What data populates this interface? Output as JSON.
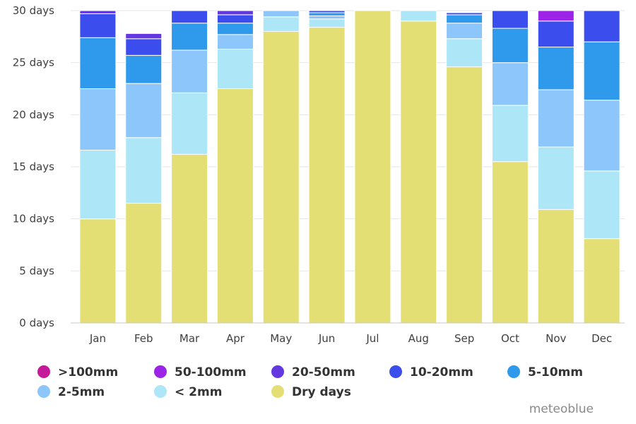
{
  "chart_data": {
    "type": "bar",
    "stacked": true,
    "categories": [
      "Jan",
      "Feb",
      "Mar",
      "Apr",
      "May",
      "Jun",
      "Jul",
      "Aug",
      "Sep",
      "Oct",
      "Nov",
      "Dec"
    ],
    "ylim": [
      0,
      30
    ],
    "yticks": [
      0,
      5,
      10,
      15,
      20,
      25,
      30
    ],
    "ytick_labels": [
      "0 days",
      "5 days",
      "10 days",
      "15 days",
      "20 days",
      "25 days",
      "30 days"
    ],
    "grid": true,
    "legend_placement": "bottom",
    "credit": "meteoblue",
    "series": [
      {
        "name": "Dry days",
        "color": "#e3df75",
        "values": [
          10.0,
          11.5,
          16.2,
          22.5,
          28.0,
          28.4,
          30.0,
          29.0,
          24.6,
          15.5,
          10.9,
          8.1
        ]
      },
      {
        "name": "< 2mm",
        "color": "#ade6f7",
        "values": [
          6.6,
          6.3,
          5.9,
          3.8,
          1.4,
          0.8,
          0.0,
          1.0,
          2.7,
          5.4,
          6.0,
          6.5
        ]
      },
      {
        "name": "2-5mm",
        "color": "#8cc6fa",
        "values": [
          5.9,
          5.2,
          4.1,
          1.4,
          0.6,
          0.3,
          0.0,
          0.0,
          1.5,
          4.1,
          5.5,
          6.8
        ]
      },
      {
        "name": "5-10mm",
        "color": "#2f9aec",
        "values": [
          4.9,
          2.7,
          2.6,
          1.1,
          0.0,
          0.3,
          0.0,
          0.0,
          0.8,
          3.3,
          4.1,
          5.6
        ]
      },
      {
        "name": "10-20mm",
        "color": "#3c4ded",
        "values": [
          2.3,
          1.6,
          1.2,
          0.8,
          0.0,
          0.2,
          0.0,
          0.0,
          0.2,
          1.7,
          2.5,
          3.0
        ]
      },
      {
        "name": "20-50mm",
        "color": "#6338e0",
        "values": [
          0.3,
          0.5,
          0.0,
          0.5,
          0.0,
          0.0,
          0.0,
          0.0,
          0.0,
          0.0,
          0.0,
          0.0
        ]
      },
      {
        "name": "50-100mm",
        "color": "#9b24e6",
        "values": [
          0.0,
          0.0,
          0.0,
          0.0,
          0.0,
          0.0,
          0.0,
          0.0,
          0.0,
          0.0,
          1.0,
          0.0
        ]
      },
      {
        "name": ">100mm",
        "color": "#c41a99",
        "values": [
          0.0,
          0.0,
          0.0,
          0.0,
          0.0,
          0.0,
          0.0,
          0.0,
          0.0,
          0.0,
          0.0,
          0.0
        ]
      }
    ],
    "legend": [
      {
        "label": ">100mm",
        "color": "#c41a99"
      },
      {
        "label": "50-100mm",
        "color": "#9b24e6"
      },
      {
        "label": "20-50mm",
        "color": "#6338e0"
      },
      {
        "label": "10-20mm",
        "color": "#3c4ded"
      },
      {
        "label": "5-10mm",
        "color": "#2f9aec"
      },
      {
        "label": "2-5mm",
        "color": "#8cc6fa"
      },
      {
        "label": "< 2mm",
        "color": "#ade6f7"
      },
      {
        "label": "Dry days",
        "color": "#e3df75"
      }
    ]
  }
}
